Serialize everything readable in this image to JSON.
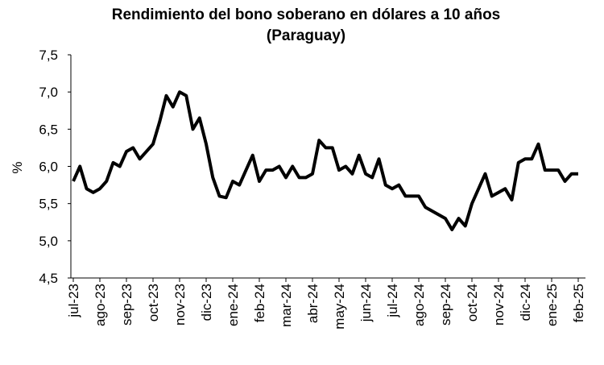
{
  "chart_data": {
    "type": "line",
    "title": [
      "Rendimiento del bono soberano en dólares a 10 años",
      "(Paraguay)"
    ],
    "ylabel": "%",
    "categories": [
      "jul-23",
      null,
      null,
      null,
      "ago-23",
      null,
      null,
      null,
      "sep-23",
      null,
      null,
      null,
      "oct-23",
      null,
      null,
      null,
      "nov-23",
      null,
      null,
      null,
      "dic-23",
      null,
      null,
      null,
      "ene-24",
      null,
      null,
      null,
      "feb-24",
      null,
      null,
      null,
      "mar-24",
      null,
      null,
      null,
      "abr-24",
      null,
      null,
      null,
      "may-24",
      null,
      null,
      null,
      "jun-24",
      null,
      null,
      null,
      "jul-24",
      null,
      null,
      null,
      "ago-24",
      null,
      null,
      null,
      "sep-24",
      null,
      null,
      null,
      "oct-24",
      null,
      null,
      null,
      "nov-24",
      null,
      null,
      null,
      "dic-24",
      null,
      null,
      null,
      "ene-25",
      null,
      null,
      null,
      "feb-25"
    ],
    "values": [
      5.8,
      6.0,
      5.7,
      5.65,
      5.7,
      5.8,
      6.05,
      6.0,
      6.2,
      6.25,
      6.1,
      6.2,
      6.3,
      6.6,
      6.95,
      6.8,
      7.0,
      6.95,
      6.5,
      6.65,
      6.3,
      5.85,
      5.6,
      5.58,
      5.8,
      5.75,
      5.95,
      6.15,
      5.8,
      5.95,
      5.95,
      6.0,
      5.85,
      6.0,
      5.85,
      5.85,
      5.9,
      6.35,
      6.25,
      6.25,
      5.95,
      6.0,
      5.9,
      6.15,
      5.9,
      5.85,
      6.1,
      5.75,
      5.7,
      5.75,
      5.6,
      5.6,
      5.6,
      5.45,
      5.4,
      5.35,
      5.3,
      5.15,
      5.3,
      5.2,
      5.5,
      5.7,
      5.9,
      5.6,
      5.65,
      5.7,
      5.55,
      6.05,
      6.1,
      6.1,
      6.3,
      5.95,
      5.95,
      5.95,
      5.8,
      5.9,
      5.9
    ],
    "color": "#000000",
    "ylim": [
      4.5,
      7.5
    ],
    "yticks": [
      {
        "value": 4.5,
        "label": "4,5"
      },
      {
        "value": 5,
        "label": "5,0"
      },
      {
        "value": 5.5,
        "label": "5,5"
      },
      {
        "value": 6,
        "label": "6,0"
      },
      {
        "value": 6.5,
        "label": "6,5"
      },
      {
        "value": 7,
        "label": "7,0"
      },
      {
        "value": 7.5,
        "label": "7,5"
      }
    ],
    "grid": false
  }
}
